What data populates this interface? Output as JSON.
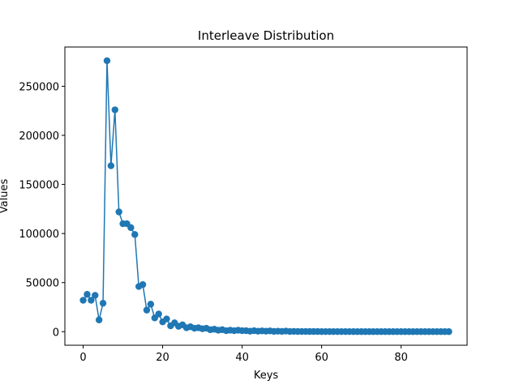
{
  "chart_data": {
    "type": "line",
    "title": "Interleave Distribution",
    "xlabel": "Keys",
    "ylabel": "Values",
    "xlim": [
      -4.6,
      96.6
    ],
    "ylim": [
      -13800,
      290000
    ],
    "x_ticks": [
      0,
      20,
      40,
      60,
      80
    ],
    "y_ticks": [
      0,
      50000,
      100000,
      150000,
      200000,
      250000
    ],
    "x_tick_labels": [
      "0",
      "20",
      "40",
      "60",
      "80"
    ],
    "y_tick_labels": [
      "0",
      "50000",
      "100000",
      "150000",
      "200000",
      "250000"
    ],
    "grid": false,
    "legend": "none",
    "series": [
      {
        "color": "#1f77b4",
        "marker": "circle",
        "x": [
          0,
          1,
          2,
          3,
          4,
          5,
          6,
          7,
          8,
          9,
          10,
          11,
          12,
          13,
          14,
          15,
          16,
          17,
          18,
          19,
          20,
          21,
          22,
          23,
          24,
          25,
          26,
          27,
          28,
          29,
          30,
          31,
          32,
          33,
          34,
          35,
          36,
          37,
          38,
          39,
          40,
          41,
          42,
          43,
          44,
          45,
          46,
          47,
          48,
          49,
          50,
          51,
          52,
          53,
          54,
          55,
          56,
          57,
          58,
          59,
          60,
          61,
          62,
          63,
          64,
          65,
          66,
          67,
          68,
          69,
          70,
          71,
          72,
          73,
          74,
          75,
          76,
          77,
          78,
          79,
          80,
          81,
          82,
          83,
          84,
          85,
          86,
          87,
          88,
          89,
          90,
          91,
          92
        ],
        "y": [
          32000,
          38000,
          32000,
          37000,
          12000,
          29000,
          276000,
          169000,
          226000,
          122000,
          110000,
          110000,
          106000,
          99000,
          46000,
          48000,
          22000,
          28000,
          14000,
          18000,
          10000,
          13000,
          6000,
          9000,
          5500,
          7000,
          4000,
          5000,
          3500,
          4000,
          3000,
          3500,
          2000,
          2500,
          1500,
          2000,
          1000,
          1500,
          1000,
          1500,
          1000,
          1000,
          500,
          1000,
          500,
          800,
          500,
          800,
          300,
          500,
          300,
          600,
          200,
          300,
          200,
          200,
          200,
          150,
          150,
          150,
          100,
          100,
          100,
          100,
          100,
          100,
          100,
          100,
          50,
          50,
          50,
          50,
          50,
          50,
          50,
          50,
          50,
          50,
          50,
          50,
          50,
          50,
          50,
          50,
          50,
          50,
          50,
          50,
          50,
          50,
          50,
          50,
          50
        ]
      }
    ]
  }
}
